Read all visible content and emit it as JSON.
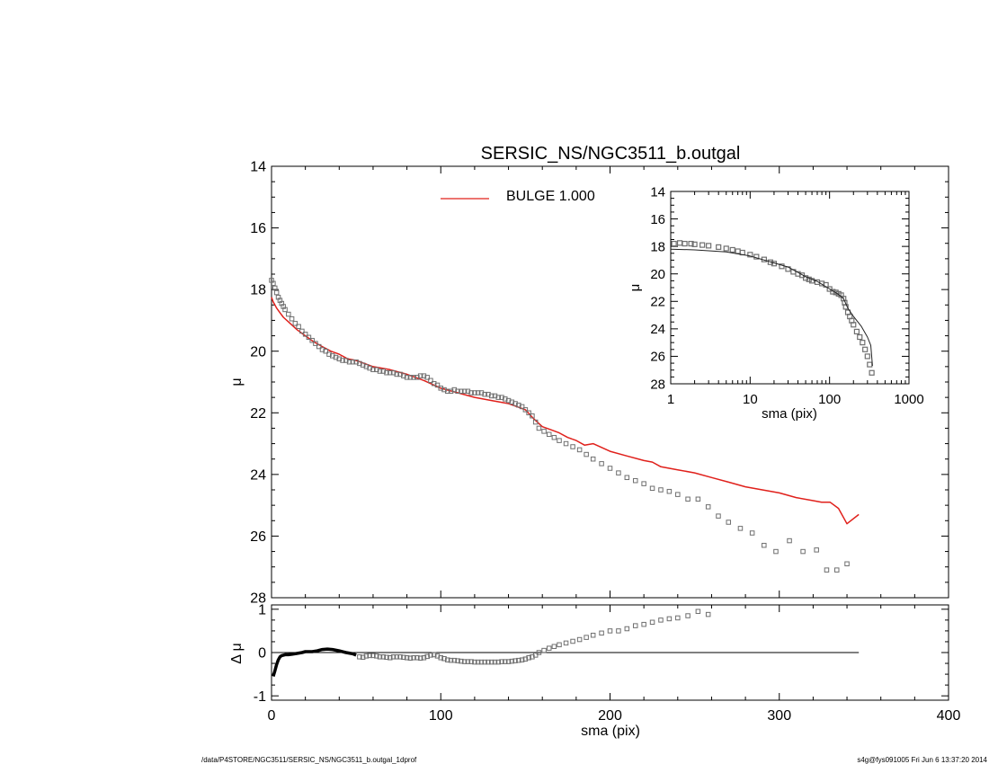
{
  "title": "SERSIC_NS/NGC3511_b.outgal",
  "footer": {
    "left": "/data/P4STORE/NGC3511/SERSIC_NS/NGC3511_b.outgal_1dprof",
    "right": "s4g@fys091005  Fri Jun  6 13:37:20 2014"
  },
  "colors": {
    "model": "#e0201b",
    "data": "#6f6f6f",
    "axis": "#000000"
  },
  "chart_data": [
    {
      "id": "main",
      "type": "line",
      "xlabel": "",
      "ylabel": "μ",
      "xlim": [
        0,
        400
      ],
      "ylim": [
        28,
        14
      ],
      "x_ticks": [
        0,
        100,
        200,
        300,
        400
      ],
      "y_ticks": [
        14,
        16,
        18,
        20,
        22,
        24,
        26,
        28
      ],
      "y_tick_labels": [
        "14",
        "16",
        "18",
        "20",
        "22",
        "24",
        "26",
        "28"
      ],
      "legend": {
        "label": "BULGE  1.000",
        "placement": "top-center"
      },
      "series": [
        {
          "name": "BULGE  1.000",
          "style": "line",
          "x": [
            0,
            1,
            2,
            3,
            5,
            7,
            10,
            15,
            20,
            25,
            30,
            35,
            40,
            45,
            50,
            55,
            60,
            70,
            80,
            90,
            100,
            110,
            120,
            130,
            140,
            145,
            150,
            155,
            160,
            165,
            170,
            175,
            180,
            185,
            190,
            200,
            210,
            220,
            225,
            230,
            240,
            250,
            260,
            270,
            280,
            290,
            300,
            310,
            320,
            325,
            330,
            335,
            340,
            347
          ],
          "y": [
            18.25,
            18.4,
            18.5,
            18.6,
            18.75,
            18.9,
            19.05,
            19.3,
            19.5,
            19.7,
            19.85,
            20.0,
            20.1,
            20.25,
            20.3,
            20.4,
            20.5,
            20.6,
            20.75,
            20.95,
            21.2,
            21.35,
            21.5,
            21.6,
            21.7,
            21.8,
            21.9,
            22.2,
            22.45,
            22.55,
            22.65,
            22.8,
            22.9,
            23.05,
            23.0,
            23.25,
            23.4,
            23.55,
            23.6,
            23.75,
            23.85,
            23.95,
            24.1,
            24.25,
            24.4,
            24.5,
            24.6,
            24.75,
            24.85,
            24.9,
            24.9,
            25.1,
            25.6,
            25.3
          ]
        },
        {
          "name": "",
          "style": "markers",
          "x": [
            0,
            1,
            2,
            3,
            4,
            5,
            6,
            7,
            8,
            10,
            12,
            14,
            16,
            18,
            20,
            22,
            24,
            26,
            28,
            30,
            32,
            34,
            36,
            38,
            40,
            42,
            44,
            46,
            48,
            50,
            52,
            54,
            56,
            58,
            60,
            62,
            64,
            66,
            68,
            70,
            72,
            74,
            76,
            78,
            80,
            82,
            84,
            86,
            88,
            90,
            92,
            94,
            96,
            98,
            100,
            102,
            104,
            106,
            108,
            110,
            112,
            114,
            116,
            118,
            120,
            122,
            124,
            126,
            128,
            130,
            132,
            134,
            136,
            138,
            140,
            142,
            144,
            146,
            148,
            150,
            152,
            154,
            156,
            158,
            161,
            164,
            167,
            170,
            174,
            178,
            182,
            186,
            190,
            195,
            200,
            205,
            210,
            215,
            220,
            225,
            230,
            235,
            240,
            246,
            252,
            258,
            264,
            270,
            277,
            284,
            291,
            298,
            306,
            314,
            322,
            328,
            334,
            340
          ],
          "y": [
            17.7,
            17.8,
            17.95,
            18.1,
            18.25,
            18.35,
            18.45,
            18.55,
            18.65,
            18.8,
            18.95,
            19.1,
            19.2,
            19.35,
            19.45,
            19.55,
            19.65,
            19.75,
            19.85,
            19.95,
            20.0,
            20.1,
            20.15,
            20.2,
            20.25,
            20.3,
            20.3,
            20.35,
            20.35,
            20.35,
            20.4,
            20.45,
            20.5,
            20.55,
            20.6,
            20.6,
            20.65,
            20.65,
            20.7,
            20.7,
            20.7,
            20.75,
            20.75,
            20.8,
            20.85,
            20.85,
            20.85,
            20.85,
            20.8,
            20.8,
            20.85,
            20.95,
            21.05,
            21.1,
            21.2,
            21.25,
            21.3,
            21.3,
            21.25,
            21.3,
            21.3,
            21.3,
            21.3,
            21.35,
            21.35,
            21.35,
            21.35,
            21.4,
            21.4,
            21.45,
            21.45,
            21.5,
            21.5,
            21.55,
            21.6,
            21.65,
            21.7,
            21.75,
            21.8,
            21.9,
            22.0,
            22.1,
            22.3,
            22.5,
            22.6,
            22.7,
            22.8,
            22.9,
            23.0,
            23.1,
            23.2,
            23.35,
            23.5,
            23.65,
            23.8,
            23.95,
            24.1,
            24.2,
            24.3,
            24.45,
            24.5,
            24.55,
            24.65,
            24.8,
            24.8,
            25.05,
            25.35,
            25.55,
            25.75,
            25.9,
            26.3,
            26.5,
            26.15,
            26.5,
            26.45,
            27.1,
            27.1,
            26.9
          ]
        }
      ]
    },
    {
      "id": "residual",
      "type": "line",
      "xlabel": "sma (pix)",
      "ylabel": "Δ μ",
      "xlim": [
        0,
        400
      ],
      "ylim": [
        -1.1,
        1.1
      ],
      "x_ticks": [
        0,
        100,
        200,
        300,
        400
      ],
      "y_ticks": [
        -1,
        0,
        1
      ],
      "y_tick_labels": [
        "-1",
        "0",
        "1"
      ],
      "series": [
        {
          "name": "",
          "style": "line",
          "x": [
            0,
            347
          ],
          "y": [
            0,
            0
          ]
        },
        {
          "name": "",
          "style": "thick-line",
          "x": [
            1,
            2,
            3,
            4,
            5,
            6,
            8,
            10,
            12,
            15,
            18,
            20,
            24,
            27,
            30,
            33,
            36,
            40,
            44,
            48,
            50
          ],
          "y": [
            -0.55,
            -0.42,
            -0.28,
            -0.17,
            -0.1,
            -0.07,
            -0.05,
            -0.05,
            -0.04,
            -0.02,
            0.0,
            0.02,
            0.02,
            0.04,
            0.07,
            0.08,
            0.07,
            0.04,
            0.0,
            -0.03,
            -0.06
          ]
        },
        {
          "name": "",
          "style": "markers",
          "x": [
            52,
            54,
            56,
            58,
            60,
            62,
            64,
            66,
            68,
            70,
            72,
            74,
            76,
            78,
            80,
            82,
            84,
            86,
            88,
            90,
            92,
            94,
            96,
            98,
            100,
            102,
            104,
            106,
            108,
            110,
            112,
            114,
            116,
            118,
            120,
            122,
            124,
            126,
            128,
            130,
            132,
            134,
            136,
            138,
            140,
            142,
            144,
            146,
            148,
            150,
            152,
            154,
            156,
            158,
            161,
            164,
            167,
            170,
            174,
            178,
            182,
            186,
            190,
            195,
            200,
            205,
            210,
            215,
            220,
            225,
            230,
            235,
            240,
            246,
            252,
            258
          ],
          "y": [
            -0.1,
            -0.11,
            -0.08,
            -0.07,
            -0.07,
            -0.08,
            -0.1,
            -0.1,
            -0.11,
            -0.12,
            -0.1,
            -0.1,
            -0.1,
            -0.11,
            -0.12,
            -0.13,
            -0.12,
            -0.12,
            -0.13,
            -0.12,
            -0.09,
            -0.06,
            -0.05,
            -0.08,
            -0.12,
            -0.14,
            -0.17,
            -0.18,
            -0.18,
            -0.19,
            -0.2,
            -0.21,
            -0.21,
            -0.21,
            -0.22,
            -0.22,
            -0.22,
            -0.22,
            -0.22,
            -0.22,
            -0.22,
            -0.22,
            -0.21,
            -0.21,
            -0.21,
            -0.2,
            -0.19,
            -0.18,
            -0.17,
            -0.15,
            -0.12,
            -0.1,
            -0.06,
            0.0,
            0.05,
            0.1,
            0.14,
            0.18,
            0.22,
            0.26,
            0.3,
            0.35,
            0.4,
            0.45,
            0.5,
            0.5,
            0.55,
            0.62,
            0.65,
            0.7,
            0.75,
            0.78,
            0.8,
            0.85,
            0.95,
            0.88
          ]
        }
      ]
    },
    {
      "id": "inset",
      "type": "scatter",
      "xlabel": "sma (pix)",
      "ylabel": "μ",
      "x_scale": "log",
      "xlim": [
        1,
        1000
      ],
      "ylim": [
        28,
        14
      ],
      "x_ticks": [
        1,
        10,
        100,
        1000
      ],
      "x_tick_labels": [
        "1",
        "10",
        "100",
        "1000"
      ],
      "y_ticks": [
        14,
        16,
        18,
        20,
        22,
        24,
        26,
        28
      ],
      "y_tick_labels": [
        "14",
        "16",
        "18",
        "20",
        "22",
        "24",
        "26",
        "28"
      ],
      "series": [
        {
          "name": "",
          "style": "markers",
          "x": [
            1.1,
            1.3,
            1.5,
            1.8,
            2,
            2.5,
            3,
            4,
            5,
            6,
            7,
            8,
            10,
            12,
            15,
            18,
            20,
            25,
            30,
            35,
            40,
            45,
            50,
            55,
            60,
            70,
            80,
            90,
            100,
            110,
            120,
            130,
            140,
            150,
            155,
            160,
            170,
            180,
            190,
            200,
            220,
            240,
            260,
            280,
            300,
            320,
            340
          ],
          "y": [
            17.8,
            17.75,
            17.8,
            17.8,
            17.85,
            17.9,
            17.95,
            18.05,
            18.15,
            18.25,
            18.35,
            18.45,
            18.6,
            18.75,
            18.95,
            19.15,
            19.25,
            19.45,
            19.65,
            19.85,
            20.0,
            20.1,
            20.3,
            20.4,
            20.5,
            20.6,
            20.7,
            20.8,
            21.1,
            21.3,
            21.35,
            21.45,
            21.55,
            21.8,
            22.1,
            22.4,
            22.8,
            23.1,
            23.4,
            23.7,
            24.2,
            24.6,
            25.0,
            25.5,
            26.0,
            26.6,
            27.2
          ]
        },
        {
          "name": "",
          "style": "line",
          "x": [
            1,
            2,
            5,
            10,
            20,
            30,
            50,
            70,
            100,
            130,
            150,
            170,
            200,
            250,
            300,
            330,
            347
          ],
          "y": [
            18.2,
            18.25,
            18.4,
            18.7,
            19.2,
            19.5,
            20.2,
            20.55,
            21.1,
            21.5,
            21.8,
            22.5,
            23.1,
            23.8,
            24.6,
            25.2,
            26.7
          ]
        }
      ]
    }
  ]
}
